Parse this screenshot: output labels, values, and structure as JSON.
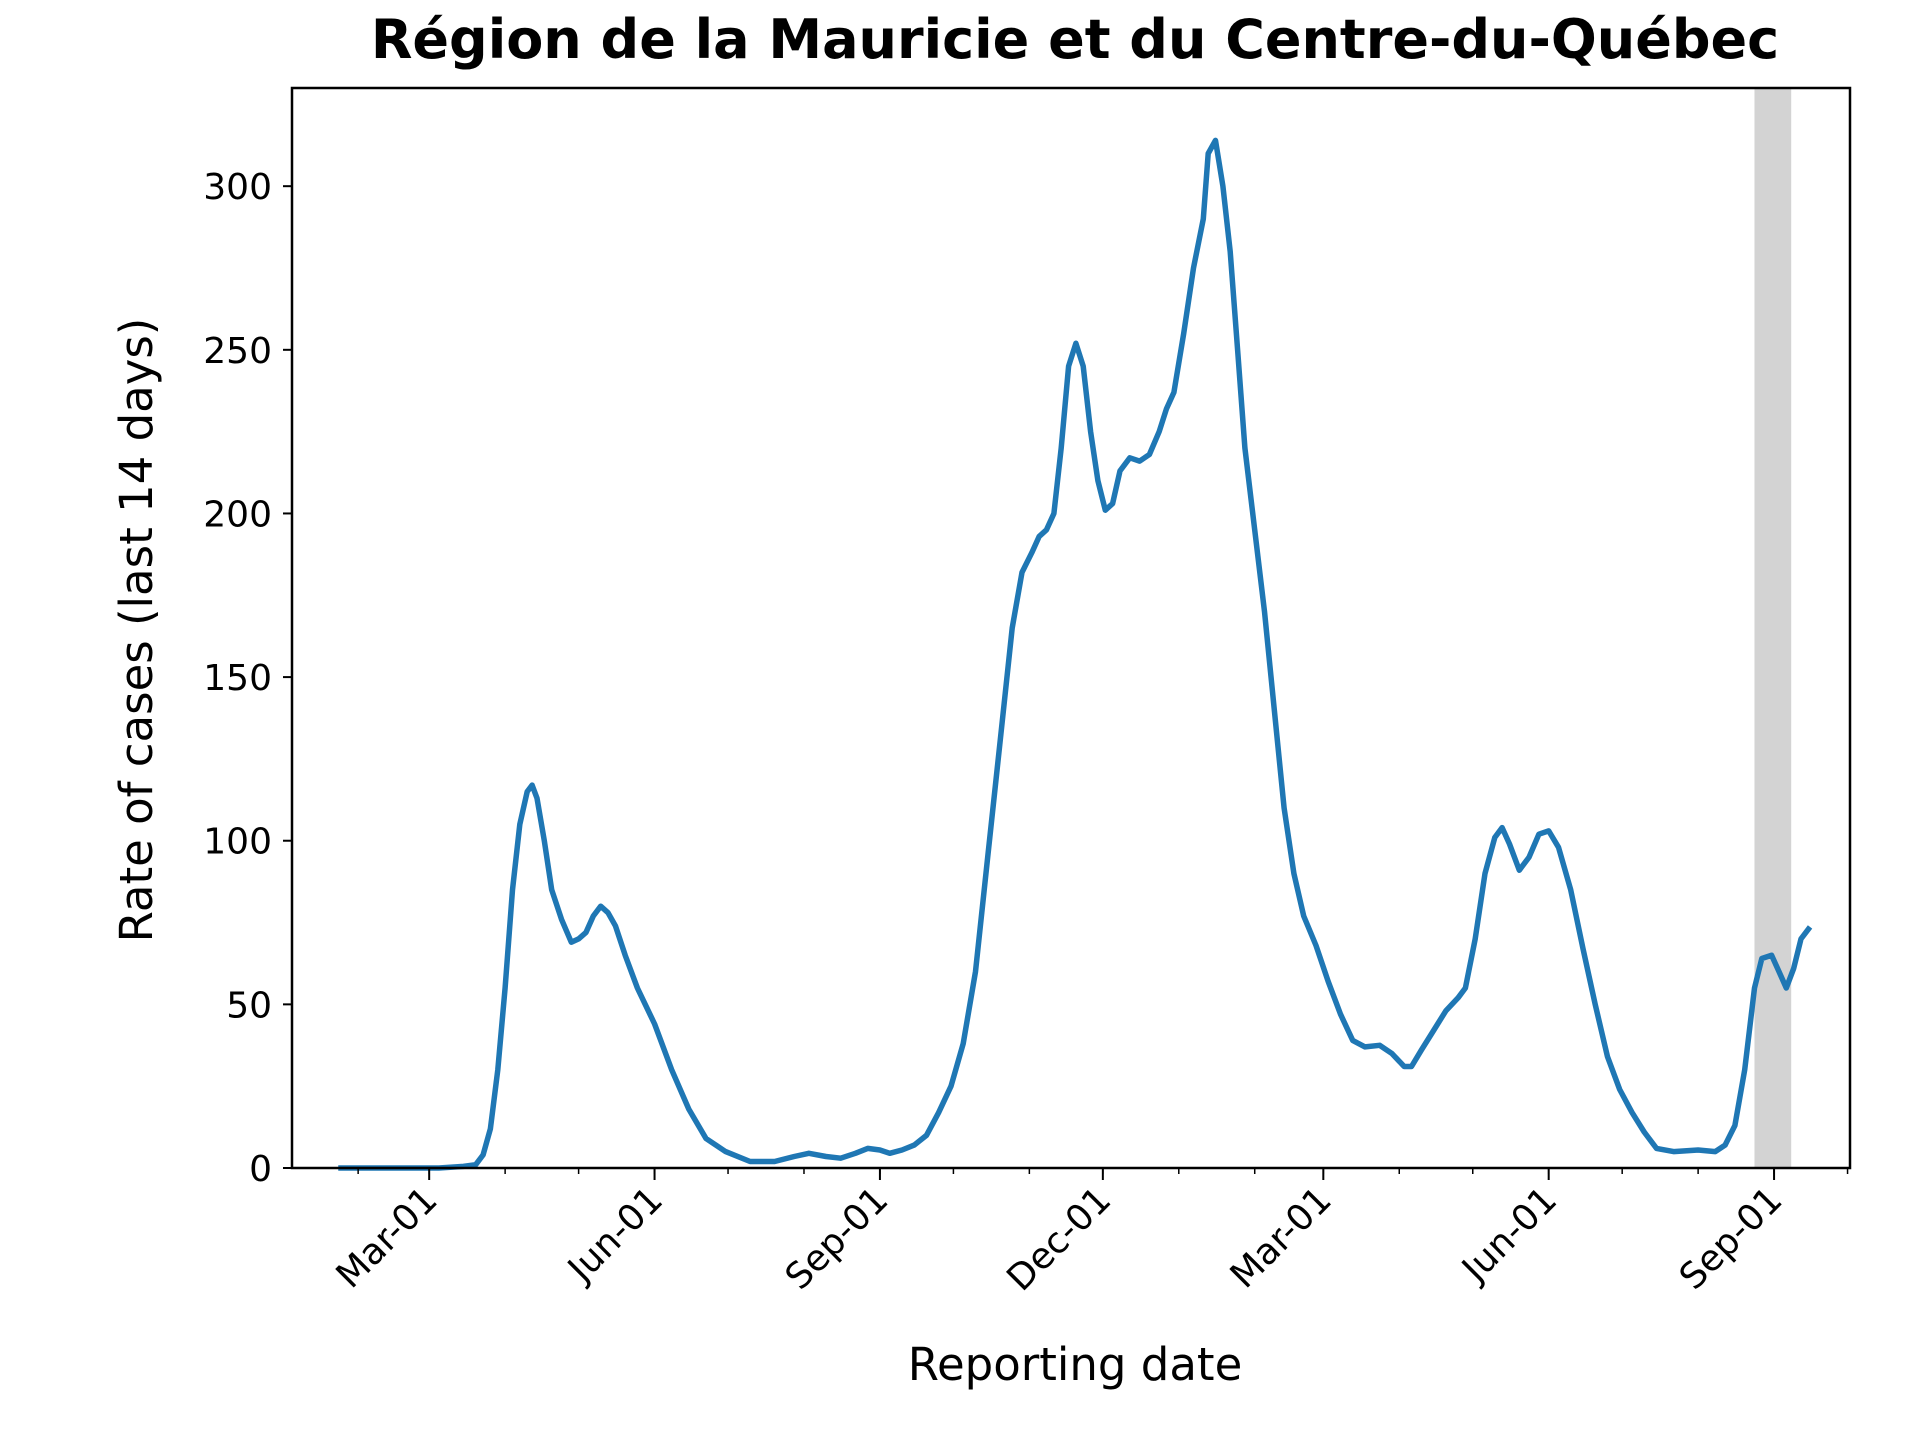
{
  "chart_data": {
    "type": "line",
    "title": "Région de la Mauricie et du Centre-du-Québec",
    "xlabel": "Reporting date",
    "ylabel": "Rate of cases (last 14 days)",
    "x_ticks": [
      {
        "date": "2020-03-01",
        "label": "Mar-01"
      },
      {
        "date": "2020-06-01",
        "label": "Jun-01"
      },
      {
        "date": "2020-09-01",
        "label": "Sep-01"
      },
      {
        "date": "2020-12-01",
        "label": "Dec-01"
      },
      {
        "date": "2021-03-01",
        "label": "Mar-01"
      },
      {
        "date": "2021-06-01",
        "label": "Jun-01"
      },
      {
        "date": "2021-09-01",
        "label": "Sep-01"
      }
    ],
    "y_ticks": [
      0,
      50,
      100,
      150,
      200,
      250,
      300
    ],
    "xlim": [
      "2020-01-05",
      "2021-10-02"
    ],
    "ylim": [
      0,
      330
    ],
    "grid": false,
    "shaded_region": {
      "start": "2021-08-24",
      "end": "2021-09-08",
      "color": "#d3d3d3"
    },
    "series": [
      {
        "color": "#1f77b4",
        "points": [
          [
            "2020-01-25",
            0
          ],
          [
            "2020-02-15",
            0
          ],
          [
            "2020-03-05",
            0
          ],
          [
            "2020-03-15",
            0.5
          ],
          [
            "2020-03-20",
            1
          ],
          [
            "2020-03-23",
            4
          ],
          [
            "2020-03-26",
            12
          ],
          [
            "2020-03-29",
            30
          ],
          [
            "2020-04-01",
            55
          ],
          [
            "2020-04-04",
            85
          ],
          [
            "2020-04-07",
            105
          ],
          [
            "2020-04-10",
            115
          ],
          [
            "2020-04-12",
            117
          ],
          [
            "2020-04-14",
            113
          ],
          [
            "2020-04-17",
            100
          ],
          [
            "2020-04-20",
            85
          ],
          [
            "2020-04-24",
            76
          ],
          [
            "2020-04-28",
            69
          ],
          [
            "2020-05-01",
            70
          ],
          [
            "2020-05-04",
            72
          ],
          [
            "2020-05-07",
            77
          ],
          [
            "2020-05-10",
            80
          ],
          [
            "2020-05-13",
            78
          ],
          [
            "2020-05-16",
            74
          ],
          [
            "2020-05-20",
            65
          ],
          [
            "2020-05-25",
            55
          ],
          [
            "2020-06-01",
            44
          ],
          [
            "2020-06-08",
            30
          ],
          [
            "2020-06-15",
            18
          ],
          [
            "2020-06-22",
            9
          ],
          [
            "2020-06-30",
            5
          ],
          [
            "2020-07-10",
            2
          ],
          [
            "2020-07-20",
            2
          ],
          [
            "2020-07-28",
            3.5
          ],
          [
            "2020-08-03",
            4.5
          ],
          [
            "2020-08-10",
            3.5
          ],
          [
            "2020-08-16",
            3
          ],
          [
            "2020-08-22",
            4.5
          ],
          [
            "2020-08-27",
            6
          ],
          [
            "2020-09-01",
            5.5
          ],
          [
            "2020-09-05",
            4.5
          ],
          [
            "2020-09-10",
            5.5
          ],
          [
            "2020-09-15",
            7
          ],
          [
            "2020-09-20",
            10
          ],
          [
            "2020-09-25",
            17
          ],
          [
            "2020-09-30",
            25
          ],
          [
            "2020-10-05",
            38
          ],
          [
            "2020-10-10",
            60
          ],
          [
            "2020-10-15",
            95
          ],
          [
            "2020-10-20",
            130
          ],
          [
            "2020-10-25",
            165
          ],
          [
            "2020-10-29",
            182
          ],
          [
            "2020-11-02",
            188
          ],
          [
            "2020-11-05",
            193
          ],
          [
            "2020-11-08",
            195
          ],
          [
            "2020-11-11",
            200
          ],
          [
            "2020-11-14",
            220
          ],
          [
            "2020-11-17",
            245
          ],
          [
            "2020-11-20",
            252
          ],
          [
            "2020-11-23",
            245
          ],
          [
            "2020-11-26",
            225
          ],
          [
            "2020-11-29",
            210
          ],
          [
            "2020-12-02",
            201
          ],
          [
            "2020-12-05",
            203
          ],
          [
            "2020-12-08",
            213
          ],
          [
            "2020-12-12",
            217
          ],
          [
            "2020-12-16",
            216
          ],
          [
            "2020-12-20",
            218
          ],
          [
            "2020-12-24",
            225
          ],
          [
            "2020-12-27",
            232
          ],
          [
            "2020-12-30",
            237
          ],
          [
            "2021-01-03",
            255
          ],
          [
            "2021-01-07",
            275
          ],
          [
            "2021-01-11",
            290
          ],
          [
            "2021-01-13",
            310
          ],
          [
            "2021-01-16",
            314
          ],
          [
            "2021-01-19",
            300
          ],
          [
            "2021-01-22",
            280
          ],
          [
            "2021-01-25",
            250
          ],
          [
            "2021-01-28",
            220
          ],
          [
            "2021-02-01",
            195
          ],
          [
            "2021-02-05",
            170
          ],
          [
            "2021-02-09",
            140
          ],
          [
            "2021-02-13",
            110
          ],
          [
            "2021-02-17",
            90
          ],
          [
            "2021-02-21",
            77
          ],
          [
            "2021-02-26",
            68
          ],
          [
            "2021-03-03",
            57
          ],
          [
            "2021-03-08",
            47
          ],
          [
            "2021-03-13",
            39
          ],
          [
            "2021-03-18",
            37
          ],
          [
            "2021-03-24",
            37.5
          ],
          [
            "2021-03-29",
            35
          ],
          [
            "2021-04-03",
            31
          ],
          [
            "2021-04-06",
            31
          ],
          [
            "2021-04-10",
            36
          ],
          [
            "2021-04-15",
            42
          ],
          [
            "2021-04-20",
            48
          ],
          [
            "2021-04-25",
            52
          ],
          [
            "2021-04-28",
            55
          ],
          [
            "2021-05-02",
            70
          ],
          [
            "2021-05-06",
            90
          ],
          [
            "2021-05-10",
            101
          ],
          [
            "2021-05-13",
            104
          ],
          [
            "2021-05-16",
            99
          ],
          [
            "2021-05-20",
            91
          ],
          [
            "2021-05-24",
            95
          ],
          [
            "2021-05-28",
            102
          ],
          [
            "2021-06-01",
            103
          ],
          [
            "2021-06-05",
            98
          ],
          [
            "2021-06-10",
            85
          ],
          [
            "2021-06-15",
            67
          ],
          [
            "2021-06-20",
            50
          ],
          [
            "2021-06-25",
            34
          ],
          [
            "2021-06-30",
            24
          ],
          [
            "2021-07-05",
            17
          ],
          [
            "2021-07-10",
            11
          ],
          [
            "2021-07-15",
            6
          ],
          [
            "2021-07-22",
            5
          ],
          [
            "2021-08-01",
            5.5
          ],
          [
            "2021-08-08",
            5
          ],
          [
            "2021-08-12",
            7
          ],
          [
            "2021-08-16",
            13
          ],
          [
            "2021-08-20",
            30
          ],
          [
            "2021-08-24",
            55
          ],
          [
            "2021-08-27",
            64
          ],
          [
            "2021-08-31",
            65
          ],
          [
            "2021-09-03",
            60
          ],
          [
            "2021-09-06",
            55
          ],
          [
            "2021-09-09",
            61
          ],
          [
            "2021-09-12",
            70
          ],
          [
            "2021-09-15",
            73
          ]
        ]
      }
    ]
  }
}
